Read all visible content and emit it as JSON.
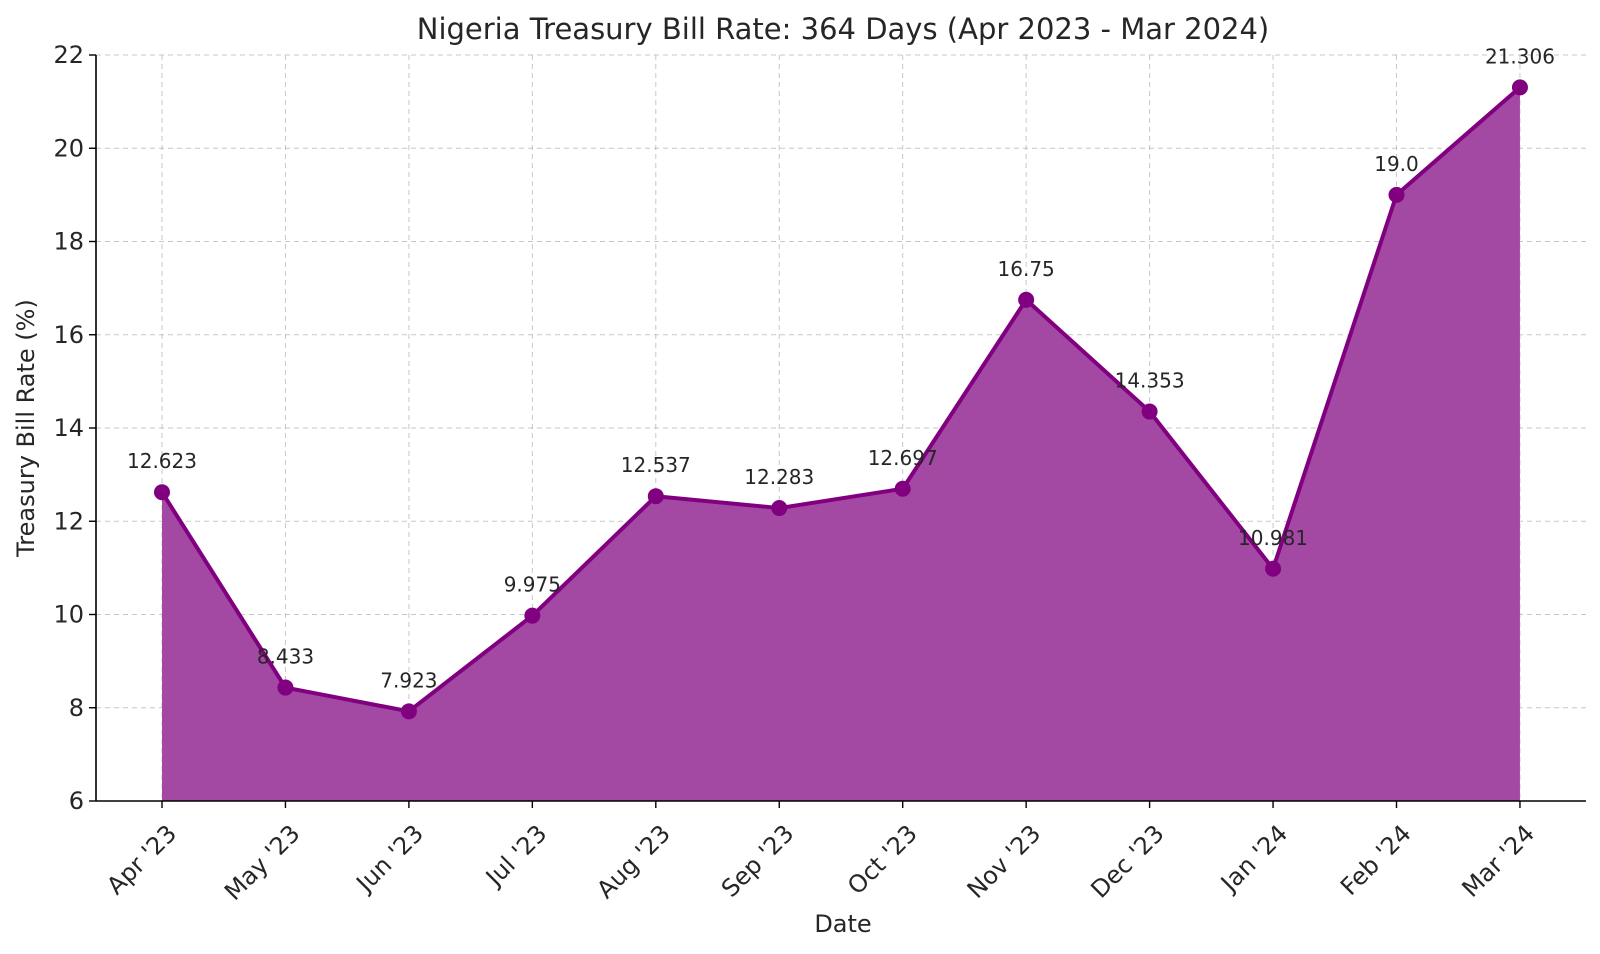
{
  "chart_data": {
    "type": "area",
    "title": "Nigeria Treasury Bill Rate: 364 Days (Apr 2023 - Mar 2024)",
    "xlabel": "Date",
    "ylabel": "Treasury Bill Rate (%)",
    "categories": [
      "Apr '23",
      "May '23",
      "Jun '23",
      "Jul '23",
      "Aug '23",
      "Sep '23",
      "Oct '23",
      "Nov '23",
      "Dec '23",
      "Jan '24",
      "Feb '24",
      "Mar '24"
    ],
    "values": [
      12.623,
      8.433,
      7.923,
      9.975,
      12.537,
      12.283,
      12.697,
      16.75,
      14.353,
      10.981,
      19.0,
      21.306
    ],
    "value_labels": [
      "12.623",
      "8.433",
      "7.923",
      "9.975",
      "12.537",
      "12.283",
      "12.697",
      "16.75",
      "14.353",
      "10.981",
      "19.0",
      "21.306"
    ],
    "ylim": [
      6,
      22
    ],
    "yticks": [
      "6",
      "8",
      "10",
      "12",
      "14",
      "16",
      "18",
      "20",
      "22"
    ],
    "grid": true,
    "colors": {
      "line": "#800080",
      "fill": "#a349a4"
    }
  }
}
